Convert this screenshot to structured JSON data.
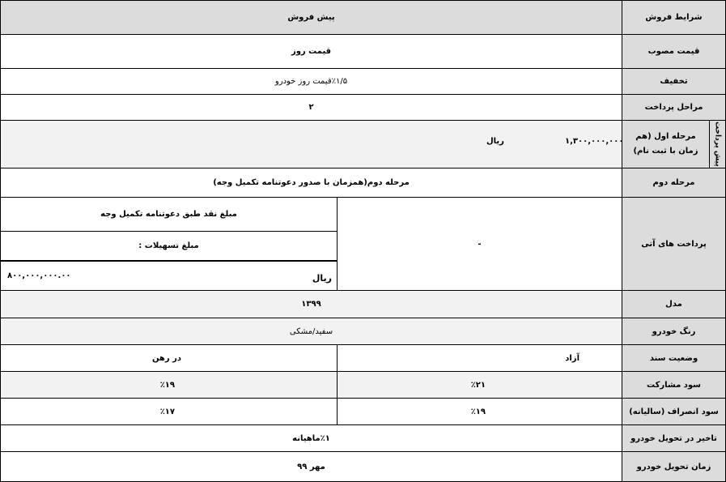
{
  "rows": {
    "sale_terms": {
      "label": "شرایط فروش",
      "value": "پیش فروش"
    },
    "approved_price": {
      "label": "قیمت مصوب",
      "value": "قیمت روز"
    },
    "discount": {
      "label": "تخفیف",
      "value": "٪۱/۵قیمت روز خودرو"
    },
    "payment_stages": {
      "label": "مراحل پرداخت",
      "value": "۲"
    },
    "prepayment_group": "پیش پرداخت",
    "stage_one": {
      "label": "مرحله اول (هم زمان با ثبت نام)",
      "amount": "۱,۳۰۰,۰۰۰,۰۰۰",
      "unit": "ریال"
    },
    "stage_two": {
      "label": "مرحله دوم",
      "value": "مرحله دوم(همزمان با صدور دعوتنامه تکمیل وجه)"
    },
    "future_payments": {
      "label": "پرداخت های آتی",
      "value": "-",
      "cash_label": "مبلغ نقد طبق دعوتنامه تکمیل وجه",
      "loan_label": "مبلغ تسهیلات :",
      "loan_amount": "۸۰۰,۰۰۰,۰۰۰.۰۰",
      "unit": "ریال"
    },
    "model": {
      "label": "مدل",
      "value": "۱۳۹۹"
    },
    "color": {
      "label": "رنگ خودرو",
      "value": "سفید/مشکی"
    },
    "document_status": {
      "label": "وضعیت سند",
      "free": "آزاد",
      "mortgaged": "در رهن"
    },
    "partnership_profit": {
      "label": "سود مشارکت",
      "free": "٪۲۱",
      "mortgaged": "٪۱۹"
    },
    "cancellation_profit": {
      "label": "سود انصراف (سالیانه)",
      "free": "٪۱۹",
      "mortgaged": "٪۱۷"
    },
    "delivery_delay": {
      "label": "تاخیر در تحویل خودرو",
      "value": "٪۱ماهیانه"
    },
    "delivery_time": {
      "label": "زمان تحویل خودرو",
      "value": "مهر ۹۹"
    }
  }
}
